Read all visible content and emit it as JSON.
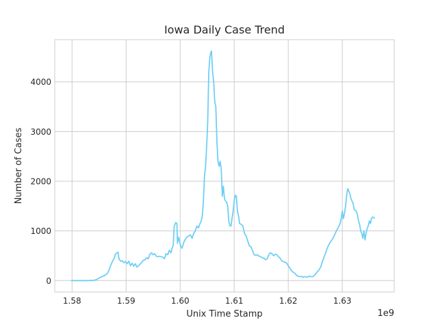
{
  "chart_data": {
    "type": "line",
    "title": "Iowa Daily Case Trend",
    "xlabel": "Unix Time Stamp",
    "ylabel": "Number of Cases",
    "x_offset_label": "1e9",
    "x_scale": 1000000000,
    "xlim": [
      1.5768,
      1.6396
    ],
    "ylim": [
      -230,
      4850
    ],
    "x_ticks": [
      1.58,
      1.59,
      1.6,
      1.61,
      1.62,
      1.63
    ],
    "x_tick_labels": [
      "1.58",
      "1.59",
      "1.60",
      "1.61",
      "1.62",
      "1.63"
    ],
    "y_ticks": [
      0,
      1000,
      2000,
      3000,
      4000
    ],
    "y_tick_labels": [
      "0",
      "1000",
      "2000",
      "3000",
      "4000"
    ],
    "grid": true,
    "legend": "none",
    "series": [
      {
        "color": "#6ecff6",
        "points": [
          [
            1.5798,
            0
          ],
          [
            1.581,
            0
          ],
          [
            1.582,
            0
          ],
          [
            1.583,
            0
          ],
          [
            1.584,
            5
          ],
          [
            1.5845,
            20
          ],
          [
            1.585,
            50
          ],
          [
            1.5855,
            80
          ],
          [
            1.586,
            100
          ],
          [
            1.5865,
            140
          ],
          [
            1.5868,
            200
          ],
          [
            1.5872,
            320
          ],
          [
            1.5875,
            390
          ],
          [
            1.5878,
            450
          ],
          [
            1.588,
            530
          ],
          [
            1.5883,
            560
          ],
          [
            1.5885,
            570
          ],
          [
            1.5887,
            430
          ],
          [
            1.589,
            390
          ],
          [
            1.5893,
            400
          ],
          [
            1.5896,
            360
          ],
          [
            1.5899,
            380
          ],
          [
            1.5902,
            340
          ],
          [
            1.5905,
            390
          ],
          [
            1.5908,
            300
          ],
          [
            1.5911,
            350
          ],
          [
            1.5914,
            290
          ],
          [
            1.5917,
            340
          ],
          [
            1.592,
            270
          ],
          [
            1.5923,
            300
          ],
          [
            1.5926,
            330
          ],
          [
            1.5929,
            370
          ],
          [
            1.5932,
            410
          ],
          [
            1.5935,
            420
          ],
          [
            1.5938,
            460
          ],
          [
            1.5941,
            440
          ],
          [
            1.5944,
            530
          ],
          [
            1.5947,
            560
          ],
          [
            1.595,
            520
          ],
          [
            1.5953,
            540
          ],
          [
            1.5956,
            490
          ],
          [
            1.5959,
            480
          ],
          [
            1.5962,
            490
          ],
          [
            1.5965,
            480
          ],
          [
            1.5968,
            470
          ],
          [
            1.5971,
            440
          ],
          [
            1.5974,
            540
          ],
          [
            1.5977,
            520
          ],
          [
            1.598,
            610
          ],
          [
            1.5983,
            560
          ],
          [
            1.5985,
            650
          ],
          [
            1.5987,
            700
          ],
          [
            1.5989,
            1100
          ],
          [
            1.5992,
            1170
          ],
          [
            1.5994,
            1150
          ],
          [
            1.5995,
            750
          ],
          [
            1.5997,
            870
          ],
          [
            1.5999,
            790
          ],
          [
            1.6001,
            700
          ],
          [
            1.6003,
            650
          ],
          [
            1.6005,
            700
          ],
          [
            1.6007,
            780
          ],
          [
            1.601,
            840
          ],
          [
            1.6013,
            880
          ],
          [
            1.6016,
            900
          ],
          [
            1.6019,
            920
          ],
          [
            1.6022,
            850
          ],
          [
            1.6025,
            950
          ],
          [
            1.6028,
            1000
          ],
          [
            1.6031,
            1100
          ],
          [
            1.6034,
            1060
          ],
          [
            1.6036,
            1130
          ],
          [
            1.6039,
            1200
          ],
          [
            1.6041,
            1300
          ],
          [
            1.6043,
            1600
          ],
          [
            1.6045,
            2100
          ],
          [
            1.6047,
            2300
          ],
          [
            1.6049,
            2700
          ],
          [
            1.6051,
            3200
          ],
          [
            1.6053,
            4200
          ],
          [
            1.6055,
            4500
          ],
          [
            1.6057,
            4600
          ],
          [
            1.6058,
            4620
          ],
          [
            1.606,
            4200
          ],
          [
            1.6062,
            4000
          ],
          [
            1.6064,
            3600
          ],
          [
            1.6066,
            3500
          ],
          [
            1.6068,
            2800
          ],
          [
            1.607,
            2400
          ],
          [
            1.6072,
            2300
          ],
          [
            1.6074,
            2400
          ],
          [
            1.6076,
            2250
          ],
          [
            1.6078,
            1700
          ],
          [
            1.608,
            1900
          ],
          [
            1.6082,
            1650
          ],
          [
            1.6084,
            1600
          ],
          [
            1.6086,
            1580
          ],
          [
            1.6088,
            1500
          ],
          [
            1.609,
            1200
          ],
          [
            1.6092,
            1100
          ],
          [
            1.6094,
            1100
          ],
          [
            1.6096,
            1250
          ],
          [
            1.6098,
            1400
          ],
          [
            1.61,
            1600
          ],
          [
            1.6102,
            1720
          ],
          [
            1.6104,
            1700
          ],
          [
            1.6106,
            1400
          ],
          [
            1.6108,
            1300
          ],
          [
            1.611,
            1150
          ],
          [
            1.6113,
            1130
          ],
          [
            1.6116,
            1100
          ],
          [
            1.6119,
            950
          ],
          [
            1.6122,
            900
          ],
          [
            1.6125,
            800
          ],
          [
            1.6128,
            700
          ],
          [
            1.6131,
            680
          ],
          [
            1.6134,
            600
          ],
          [
            1.6137,
            520
          ],
          [
            1.614,
            510
          ],
          [
            1.6143,
            520
          ],
          [
            1.6146,
            490
          ],
          [
            1.6149,
            480
          ],
          [
            1.6152,
            460
          ],
          [
            1.6155,
            450
          ],
          [
            1.6158,
            420
          ],
          [
            1.6161,
            440
          ],
          [
            1.6164,
            520
          ],
          [
            1.6167,
            560
          ],
          [
            1.617,
            540
          ],
          [
            1.6173,
            500
          ],
          [
            1.6176,
            530
          ],
          [
            1.6179,
            520
          ],
          [
            1.6182,
            480
          ],
          [
            1.6185,
            450
          ],
          [
            1.6188,
            400
          ],
          [
            1.6191,
            380
          ],
          [
            1.6194,
            370
          ],
          [
            1.6197,
            350
          ],
          [
            1.62,
            300
          ],
          [
            1.6203,
            250
          ],
          [
            1.6206,
            200
          ],
          [
            1.6209,
            170
          ],
          [
            1.6212,
            150
          ],
          [
            1.6215,
            110
          ],
          [
            1.6218,
            90
          ],
          [
            1.6221,
            80
          ],
          [
            1.6224,
            85
          ],
          [
            1.6227,
            70
          ],
          [
            1.623,
            80
          ],
          [
            1.6233,
            75
          ],
          [
            1.6236,
            70
          ],
          [
            1.6239,
            90
          ],
          [
            1.6242,
            80
          ],
          [
            1.6245,
            80
          ],
          [
            1.6248,
            100
          ],
          [
            1.6251,
            140
          ],
          [
            1.6254,
            180
          ],
          [
            1.6257,
            220
          ],
          [
            1.626,
            270
          ],
          [
            1.6263,
            380
          ],
          [
            1.6266,
            470
          ],
          [
            1.6269,
            550
          ],
          [
            1.6272,
            650
          ],
          [
            1.6275,
            720
          ],
          [
            1.6278,
            780
          ],
          [
            1.6281,
            820
          ],
          [
            1.6284,
            880
          ],
          [
            1.6287,
            950
          ],
          [
            1.629,
            1020
          ],
          [
            1.6293,
            1080
          ],
          [
            1.6296,
            1150
          ],
          [
            1.6298,
            1250
          ],
          [
            1.63,
            1400
          ],
          [
            1.6302,
            1250
          ],
          [
            1.6304,
            1350
          ],
          [
            1.6306,
            1500
          ],
          [
            1.6308,
            1720
          ],
          [
            1.631,
            1850
          ],
          [
            1.6312,
            1800
          ],
          [
            1.6314,
            1750
          ],
          [
            1.6316,
            1650
          ],
          [
            1.6318,
            1600
          ],
          [
            1.632,
            1550
          ],
          [
            1.6322,
            1430
          ],
          [
            1.6324,
            1420
          ],
          [
            1.6326,
            1390
          ],
          [
            1.6328,
            1330
          ],
          [
            1.633,
            1200
          ],
          [
            1.6332,
            1130
          ],
          [
            1.6334,
            1000
          ],
          [
            1.6336,
            950
          ],
          [
            1.6338,
            850
          ],
          [
            1.634,
            1000
          ],
          [
            1.6342,
            820
          ],
          [
            1.6344,
            950
          ],
          [
            1.6346,
            1050
          ],
          [
            1.6348,
            1100
          ],
          [
            1.635,
            1200
          ],
          [
            1.6352,
            1150
          ],
          [
            1.6354,
            1250
          ],
          [
            1.6356,
            1280
          ],
          [
            1.6358,
            1270
          ],
          [
            1.636,
            1250
          ]
        ]
      }
    ]
  }
}
